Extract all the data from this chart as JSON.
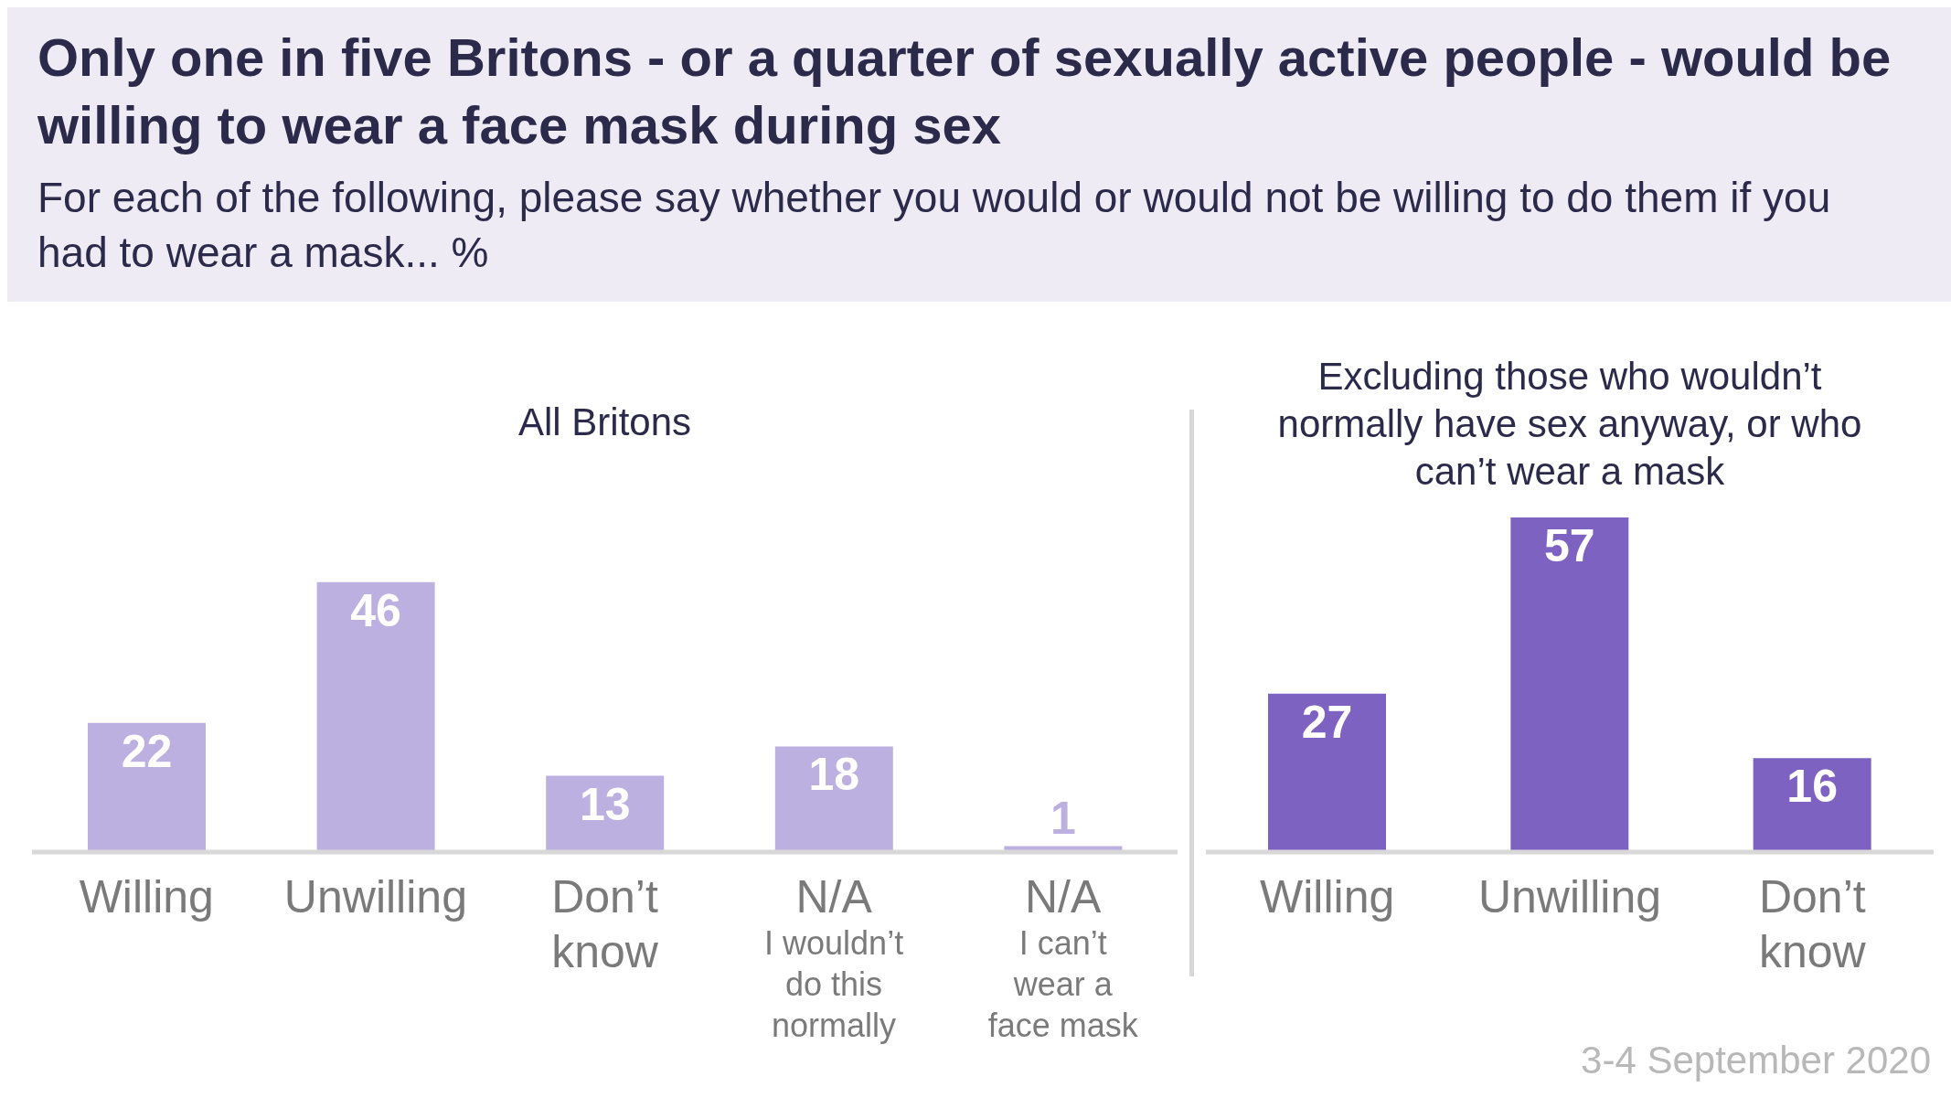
{
  "chart_data": [
    {
      "type": "other",
      "title": "Only one in five Britons - or a quarter of sexually active people - would be willing to wear a face mask during sex",
      "subtitle": "For each of the following, please say whether you would or would not be willing to do them if you had to wear a mask... %"
    },
    {
      "type": "bar",
      "title": "All Britons",
      "categories": [
        "Willing",
        "Unwilling",
        "Don’t know",
        "N/A\nI wouldn’t do this normally",
        "N/A\nI can’t wear a face mask"
      ],
      "values": [
        22,
        46,
        13,
        18,
        1
      ],
      "color": "#bcb0e0",
      "data_labels": true
    },
    {
      "type": "bar",
      "title": "Excluding those who wouldn’t normally have sex anyway, or who can’t wear a mask",
      "categories": [
        "Willing",
        "Unwilling",
        "Don’t know"
      ],
      "values": [
        27,
        57,
        16
      ],
      "color": "#7e62c2",
      "data_labels": true,
      "annotations": [
        "3-4 September 2020"
      ]
    }
  ]
}
